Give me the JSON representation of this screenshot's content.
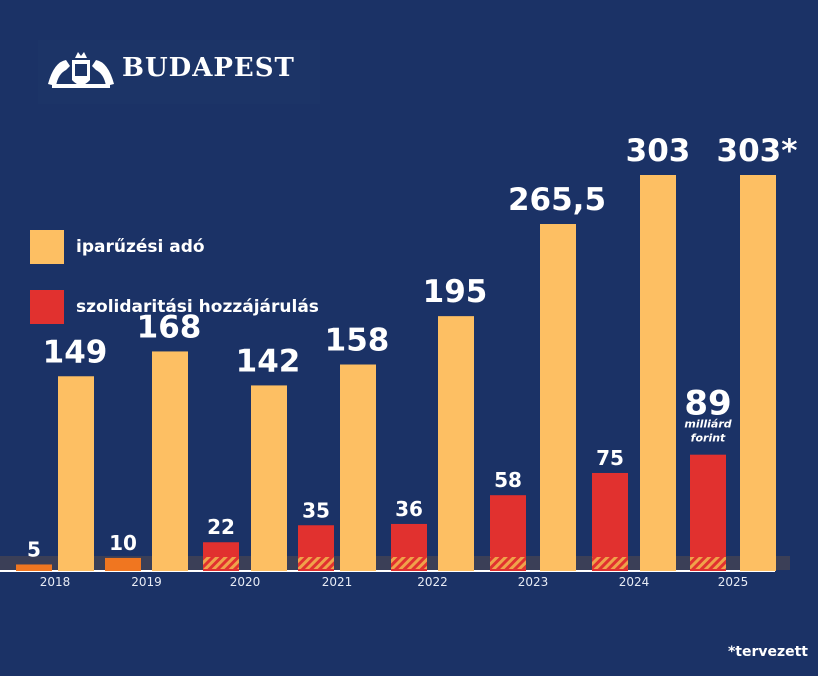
{
  "brand": {
    "name": "BUDAPEST"
  },
  "colors": {
    "background": "#1b3266",
    "ipar": "#fdbf63",
    "szoli": "#e1312f",
    "szoli_early": "#f07620",
    "label": "#ffffff"
  },
  "footnote": "*tervezett",
  "chart_data": {
    "type": "bar",
    "categories": [
      "2018",
      "2019",
      "2020",
      "2021",
      "2022",
      "2023",
      "2024",
      "2025"
    ],
    "series": [
      {
        "name": "iparűzési adó",
        "values": [
          149,
          168,
          142,
          158,
          195,
          265.5,
          303,
          303
        ],
        "labels": [
          "149",
          "168",
          "142",
          "158",
          "195",
          "265,5",
          "303",
          "303*"
        ]
      },
      {
        "name": "szolidaritási hozzájárulás",
        "values": [
          5,
          10,
          22,
          35,
          36,
          58,
          75,
          89
        ],
        "labels": [
          "5",
          "10",
          "22",
          "35",
          "36",
          "58",
          "75",
          "89"
        ]
      }
    ],
    "unit_annotation": "milliárd forint",
    "legend": "left",
    "grid": false
  }
}
